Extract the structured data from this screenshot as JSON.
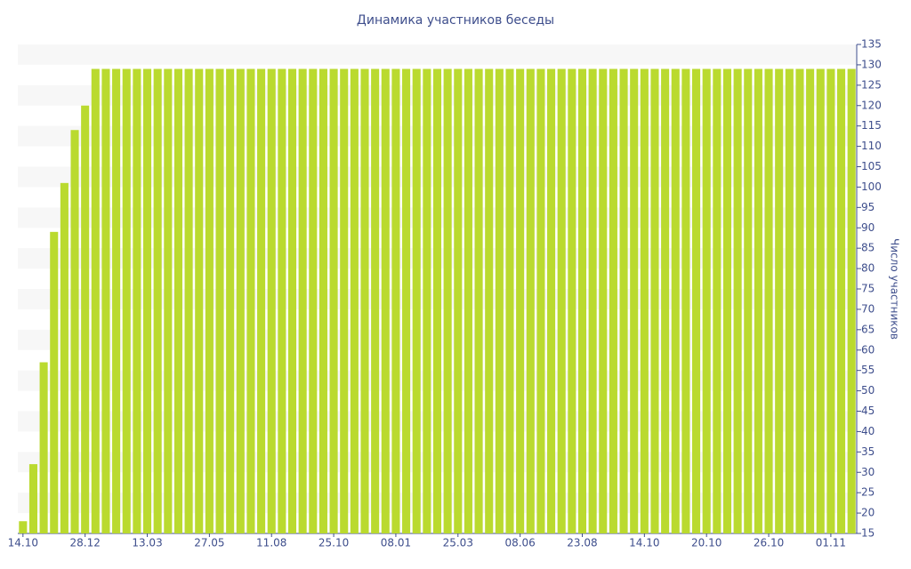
{
  "chart_data": {
    "type": "bar",
    "title": "Динамика участников беседы",
    "y_label": "Число участников",
    "categories": [
      "14.10",
      null,
      null,
      null,
      null,
      null,
      "28.12",
      null,
      null,
      null,
      null,
      null,
      "13.03",
      null,
      null,
      null,
      null,
      null,
      "27.05",
      null,
      null,
      null,
      null,
      null,
      "11.08",
      null,
      null,
      null,
      null,
      null,
      "25.10",
      null,
      null,
      null,
      null,
      null,
      "08.01",
      null,
      null,
      null,
      null,
      null,
      "25.03",
      null,
      null,
      null,
      null,
      null,
      "08.06",
      null,
      null,
      null,
      null,
      null,
      "23.08",
      null,
      null,
      null,
      null,
      null,
      "14.10",
      null,
      null,
      null,
      null,
      null,
      "20.10",
      null,
      null,
      null,
      null,
      null,
      "26.10",
      null,
      null,
      null,
      null,
      null,
      "01.11",
      null,
      null
    ],
    "values": [
      18,
      32,
      57,
      89,
      101,
      114,
      120,
      129,
      129,
      129,
      129,
      129,
      129,
      129,
      129,
      129,
      129,
      129,
      129,
      129,
      129,
      129,
      129,
      129,
      129,
      129,
      129,
      129,
      129,
      129,
      129,
      129,
      129,
      129,
      129,
      129,
      129,
      129,
      129,
      129,
      129,
      129,
      129,
      129,
      129,
      129,
      129,
      129,
      129,
      129,
      129,
      129,
      129,
      129,
      129,
      129,
      129,
      129,
      129,
      129,
      129,
      129,
      129,
      129,
      129,
      129,
      129,
      129,
      129,
      129,
      129,
      129,
      129,
      129,
      129,
      129,
      129,
      129,
      129,
      129,
      129
    ],
    "color": "#bada2f",
    "ylim": [
      15,
      135
    ],
    "yticks": [
      15,
      20,
      25,
      30,
      35,
      40,
      45,
      50,
      55,
      60,
      65,
      70,
      75,
      80,
      85,
      90,
      95,
      100,
      105,
      110,
      115,
      120,
      125,
      130,
      135
    ],
    "grid": true,
    "y_axis_side": "right"
  }
}
